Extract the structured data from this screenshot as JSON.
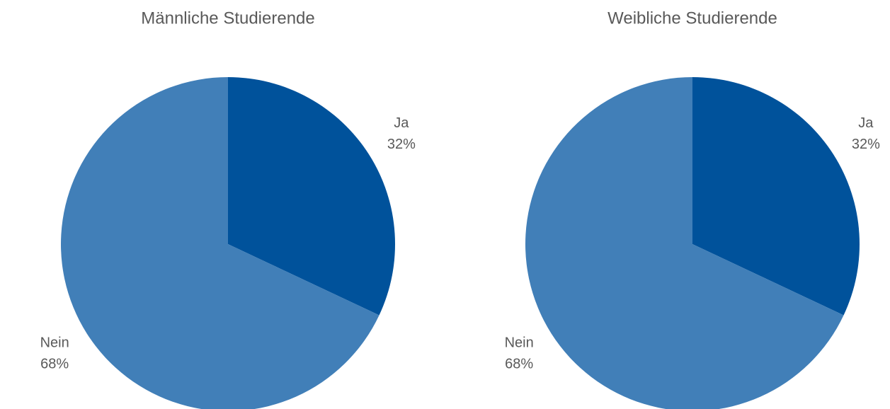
{
  "chart_data": [
    {
      "type": "pie",
      "title": "Männliche Studierende",
      "categories": [
        "Ja",
        "Nein"
      ],
      "values": [
        32,
        68
      ],
      "value_labels": [
        "32%",
        "68%"
      ],
      "colors": [
        "#00529b",
        "#417fb8"
      ]
    },
    {
      "type": "pie",
      "title": "Weibliche Studierende",
      "categories": [
        "Ja",
        "Nein"
      ],
      "values": [
        32,
        68
      ],
      "value_labels": [
        "32%",
        "68%"
      ],
      "colors": [
        "#00529b",
        "#417fb8"
      ]
    }
  ]
}
